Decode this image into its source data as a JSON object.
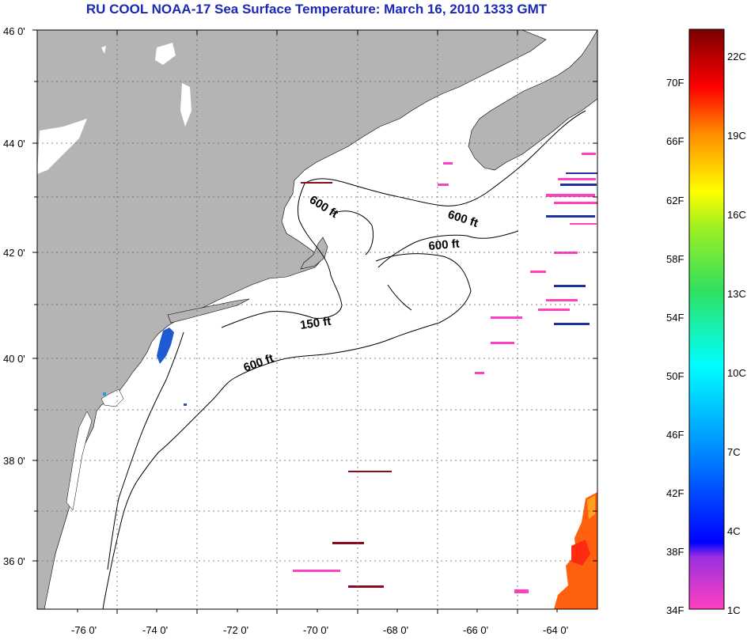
{
  "title": "RU COOL  NOAA-17  Sea Surface Temperature:  March 16, 2010 1333 GMT",
  "colors": {
    "land": "#b4b4b4",
    "water": "#ffffff",
    "grid": "#606060",
    "title": "#1a28b4"
  },
  "lat_labels": [
    "46 0'",
    "44 0'",
    "42 0'",
    "40 0'",
    "38 0'",
    "36 0'"
  ],
  "lon_labels": [
    "-76 0'",
    "-74 0'",
    "-72 0'",
    "-70 0'",
    "-68 0'",
    "-66 0'",
    "-64 0'"
  ],
  "contour_labels": {
    "gulf_maine_west": "600 ft",
    "scotian_shelf": "600 ft",
    "georges_north": "600 ft",
    "georges_shoal": "150 ft",
    "shelf_break": "600 ft"
  },
  "colorbar": {
    "fahrenheit": [
      "70F",
      "66F",
      "62F",
      "58F",
      "54F",
      "50F",
      "46F",
      "42F",
      "38F",
      "34F"
    ],
    "celsius": [
      "22C",
      "19C",
      "16C",
      "13C",
      "10C",
      "7C",
      "4C",
      "1C"
    ]
  }
}
